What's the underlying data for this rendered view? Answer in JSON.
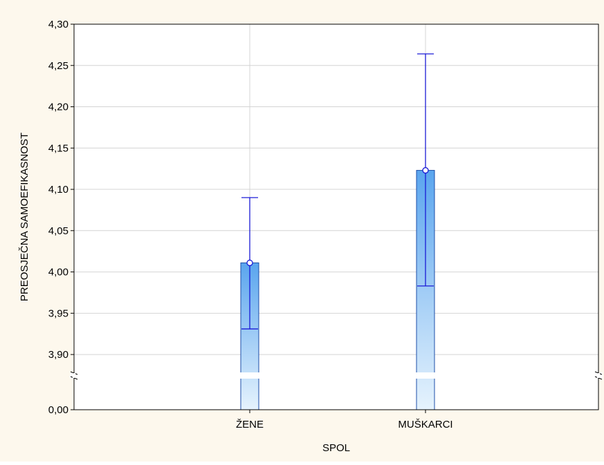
{
  "chart_data": {
    "type": "bar",
    "xlabel": "SPOL",
    "ylabel": "PREOSJEČNA SAMOEFIKASNOST",
    "categories": [
      "ŽENE",
      "MUŠKARCI"
    ],
    "values": [
      4.011,
      4.123
    ],
    "error_lower": [
      3.931,
      3.983
    ],
    "error_upper": [
      4.09,
      4.264
    ],
    "ylim": [
      3.88,
      4.3
    ],
    "yticks": [
      "4,30",
      "4,25",
      "4,20",
      "4,15",
      "4,10",
      "4,05",
      "4,00",
      "3,95",
      "3,90"
    ],
    "ytick_values": [
      4.3,
      4.25,
      4.2,
      4.15,
      4.1,
      4.05,
      4.0,
      3.95,
      3.9
    ],
    "axis_break": true,
    "baseline_tick": "0,00",
    "grid": true,
    "colors": {
      "background": "#fdf8ed",
      "plot_background": "#ffffff",
      "bar_top": "#5aa5ee",
      "bar_bottom": "#e6f3fd",
      "bar_stroke": "#1c4ea8",
      "error_bar": "#1a1ad6",
      "grid": "#d4d4d4"
    }
  }
}
